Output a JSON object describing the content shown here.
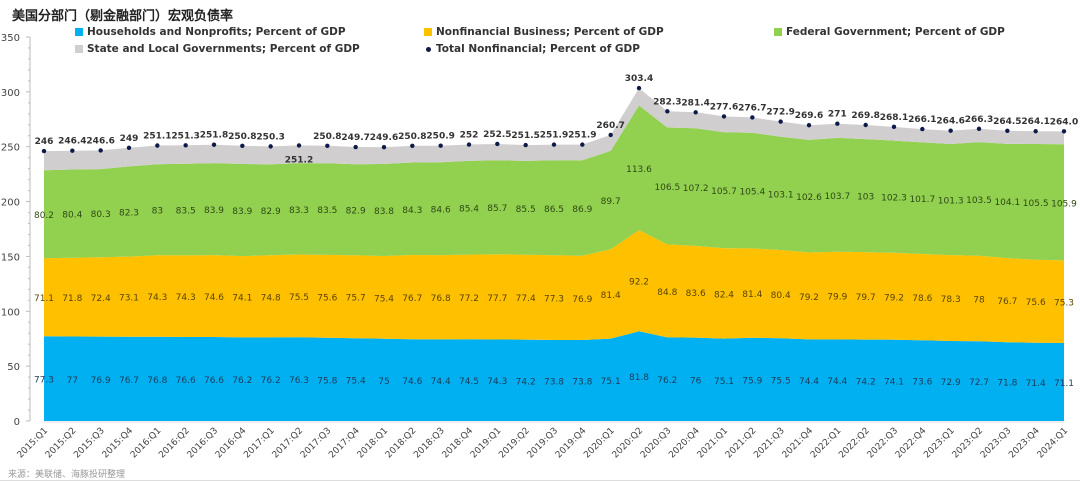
{
  "title": "美国分部门（剔金融部门）宏观负债率",
  "source": "来源：美联储、海豚投研整理",
  "colors": {
    "households": "#00b0f0",
    "business": "#ffc000",
    "federal": "#92d050",
    "state_local": "#d0cece",
    "total": "#0d1b4a"
  },
  "chart_data": {
    "type": "area",
    "stacked": true,
    "title": "美国分部门（剔金融部门）宏观负债率",
    "xlabel": "",
    "ylabel": "",
    "ylim": [
      0,
      350
    ],
    "yticks": [
      0,
      50,
      100,
      150,
      200,
      250,
      300,
      350
    ],
    "legend_position": "top",
    "categories": [
      "2015:Q1",
      "2015:Q2",
      "2015:Q3",
      "2015:Q4",
      "2016:Q1",
      "2016:Q2",
      "2016:Q3",
      "2016:Q4",
      "2017:Q1",
      "2017:Q2",
      "2017:Q3",
      "2017:Q4",
      "2018:Q1",
      "2018:Q2",
      "2018:Q3",
      "2018:Q4",
      "2019:Q1",
      "2019:Q2",
      "2019:Q3",
      "2019:Q4",
      "2020:Q1",
      "2020:Q2",
      "2020:Q3",
      "2020:Q4",
      "2021:Q1",
      "2021:Q2",
      "2021:Q3",
      "2021:Q4",
      "2022:Q1",
      "2022:Q2",
      "2022:Q3",
      "2022:Q4",
      "2023:Q1",
      "2023:Q2",
      "2023:Q3",
      "2023:Q4",
      "2024:Q1"
    ],
    "series": [
      {
        "name": "Households and Nonprofits; Percent of GDP",
        "key": "households",
        "values": [
          77.3,
          77,
          76.9,
          76.7,
          76.8,
          76.6,
          76.6,
          76.2,
          76.2,
          76.3,
          75.8,
          75.4,
          75,
          74.6,
          74.4,
          74.5,
          74.3,
          74.2,
          73.8,
          73.8,
          75.1,
          81.8,
          76.2,
          76,
          75.1,
          75.9,
          75.5,
          74.4,
          74.4,
          74.2,
          74.1,
          73.6,
          72.9,
          72.7,
          71.8,
          71.4,
          71.1
        ],
        "labels": [
          "77.3",
          "77",
          "76.9",
          "76.7",
          "76.8",
          "76.6",
          "76.6",
          "76.2",
          "76.2",
          "76.3",
          "75.8",
          "75.4",
          "75",
          "74.6",
          "74.4",
          "74.5",
          "74.3",
          "74.2",
          "73.8",
          "73.8",
          "75.1",
          "81.8",
          "76.2",
          "76",
          "75.1",
          "75.9",
          "75.5",
          "74.4",
          "74.4",
          "74.2",
          "74.1",
          "73.6",
          "72.9",
          "72.7",
          "71.8",
          "71.4",
          "71.1"
        ]
      },
      {
        "name": "Nonfinancial Business; Percent of GDP",
        "key": "business",
        "values": [
          71.1,
          71.8,
          72.4,
          73.1,
          74.3,
          74.3,
          74.6,
          74.1,
          74.8,
          75.5,
          75.6,
          75.7,
          75.4,
          76.7,
          76.8,
          77.2,
          77.7,
          77.4,
          77.3,
          76.9,
          81.4,
          92.2,
          84.8,
          83.6,
          82.4,
          81.4,
          80.4,
          79.2,
          79.9,
          79.7,
          79.2,
          78.6,
          78.3,
          78,
          76.7,
          75.6,
          75.3
        ],
        "labels": [
          "71.1",
          "71.8",
          "72.4",
          "73.1",
          "74.3",
          "74.3",
          "74.6",
          "74.1",
          "74.8",
          "75.5",
          "75.6",
          "75.7",
          "75.4",
          "76.7",
          "76.8",
          "77.2",
          "77.7",
          "77.4",
          "77.3",
          "76.9",
          "81.4",
          "92.2",
          "84.8",
          "83.6",
          "82.4",
          "81.4",
          "80.4",
          "79.2",
          "79.9",
          "79.7",
          "79.2",
          "78.6",
          "78.3",
          "78",
          "76.7",
          "75.6",
          "75.3"
        ]
      },
      {
        "name": "Federal Government; Percent of GDP",
        "key": "federal",
        "values": [
          80.2,
          80.4,
          80.3,
          82.3,
          83,
          83.5,
          83.9,
          83.9,
          82.9,
          83.3,
          83.5,
          82.9,
          83.8,
          84.3,
          84.6,
          85.4,
          85.7,
          85.5,
          86.5,
          86.9,
          89.7,
          113.6,
          106.5,
          107.2,
          105.7,
          105.4,
          103.1,
          102.6,
          103.7,
          103,
          102.3,
          101.7,
          101.3,
          103.5,
          104.1,
          105.5,
          105.9
        ],
        "labels": [
          "80.2",
          "80.4",
          "80.3",
          "82.3",
          "83",
          "83.5",
          "83.9",
          "83.9",
          "82.9",
          "83.3",
          "83.5",
          "82.9",
          "83.8",
          "84.3",
          "84.6",
          "85.4",
          "85.7",
          "85.5",
          "86.5",
          "86.9",
          "89.7",
          "113.6",
          "106.5",
          "107.2",
          "105.7",
          "105.4",
          "103.1",
          "102.6",
          "103.7",
          "103",
          "102.3",
          "101.7",
          "101.3",
          "103.5",
          "104.1",
          "105.5",
          "105.9"
        ]
      },
      {
        "name": "State and Local Governments; Percent of GDP",
        "key": "state_local",
        "values": [
          17.4,
          17.2,
          17.0,
          16.9,
          17.0,
          16.9,
          16.7,
          16.6,
          16.4,
          16.1,
          15.9,
          15.7,
          15.4,
          15.2,
          15.1,
          14.9,
          14.8,
          14.4,
          14.3,
          14.3,
          14.5,
          15.8,
          14.8,
          14.6,
          14.4,
          14.0,
          13.9,
          13.4,
          13.0,
          12.9,
          12.5,
          12.2,
          12.1,
          12.1,
          11.9,
          11.6,
          11.7
        ]
      },
      {
        "name": "Total Nonfinancial; Percent of GDP",
        "key": "total",
        "type": "scatter",
        "values": [
          246,
          246.4,
          246.6,
          249,
          251.1,
          251.3,
          251.8,
          250.8,
          250.3,
          251.2,
          250.8,
          249.7,
          249.6,
          250.8,
          250.9,
          252,
          252.5,
          251.5,
          251.9,
          251.9,
          260.7,
          303.4,
          282.3,
          281.4,
          277.6,
          276.7,
          272.9,
          269.6,
          271,
          269.8,
          268.1,
          266.1,
          264.6,
          266.3,
          264.5,
          264.1,
          264.0
        ],
        "labels": [
          "246",
          "246.4",
          "246.6",
          "249",
          "251.1",
          "251.3",
          "251.8",
          "250.8",
          "250.3",
          "251.2",
          "250.8",
          "249.7",
          "249.6",
          "250.8",
          "250.9",
          "252",
          "252.5",
          "251.5",
          "251.9",
          "251.9",
          "260.7",
          "303.4",
          "282.3",
          "281.4",
          "277.6",
          "276.7",
          "272.9",
          "269.6",
          "271",
          "269.8",
          "268.1",
          "266.1",
          "264.6",
          "266.3",
          "264.5",
          "264.1",
          "264.0"
        ]
      }
    ]
  }
}
